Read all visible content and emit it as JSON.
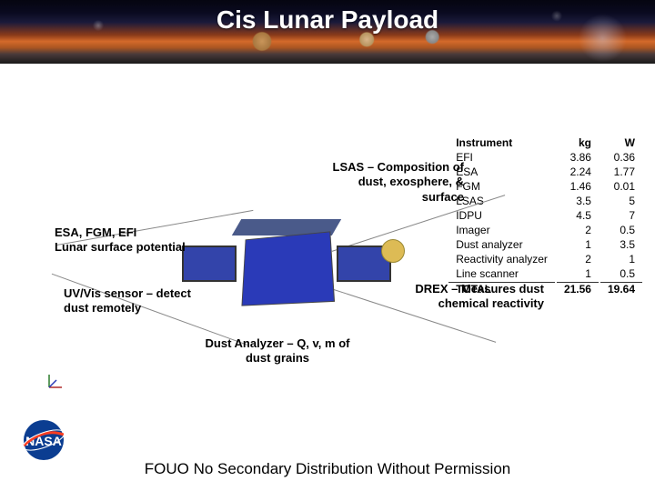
{
  "title": "Cis Lunar  Payload",
  "annotations": {
    "lsas": "LSAS – Composition of dust, exosphere, & surface",
    "esa": "ESA, FGM, EFI\nLunar surface potential",
    "uv": "UV/Vis sensor – detect dust remotely",
    "dust": "Dust Analyzer – Q, v, m of dust grains",
    "drex": "DREX – Measures dust chemical reactivity"
  },
  "table": {
    "headers": [
      "Instrument",
      "kg",
      "W"
    ],
    "rows": [
      [
        "EFI",
        "3.86",
        "0.36"
      ],
      [
        "ESA",
        "2.24",
        "1.77"
      ],
      [
        "FGM",
        "1.46",
        "0.01"
      ],
      [
        "LSAS",
        "3.5",
        "5"
      ],
      [
        "IDPU",
        "4.5",
        "7"
      ],
      [
        "Imager",
        "2",
        "0.5"
      ],
      [
        "Dust analyzer",
        "1",
        "3.5"
      ],
      [
        "Reactivity analyzer",
        "2",
        "1"
      ],
      [
        "Line scanner",
        "1",
        "0.5"
      ]
    ],
    "total": [
      "TOTAL",
      "21.56",
      "19.64"
    ]
  },
  "footer": "FOUO No Secondary Distribution Without Permission",
  "colors": {
    "sat_body": "#2a3ab8",
    "sat_panel": "#3344aa",
    "dish": "#ddbb55",
    "nasa_blue": "#0b3d91",
    "nasa_red": "#fc3d21"
  }
}
